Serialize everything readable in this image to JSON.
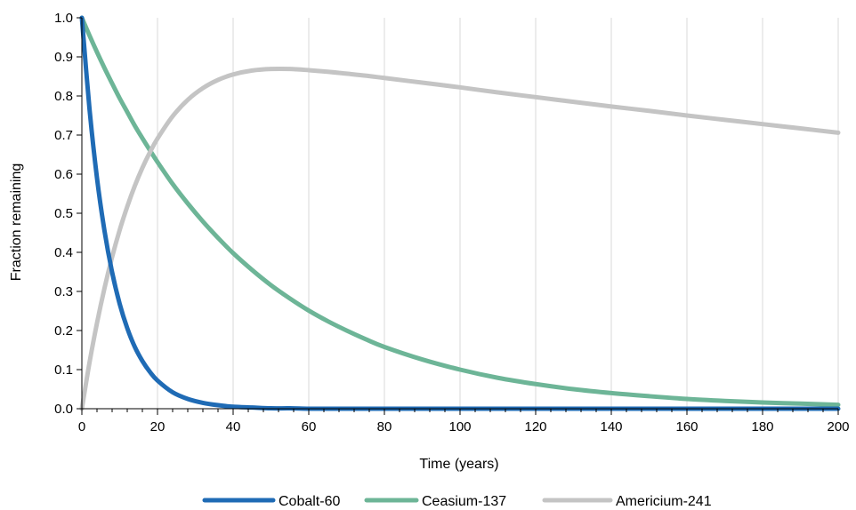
{
  "chart_data": {
    "type": "line",
    "title": "",
    "xlabel": "Time (years)",
    "ylabel": "Fraction remaining",
    "xlim": [
      0,
      200
    ],
    "ylim": [
      0,
      1.0
    ],
    "x_ticks": [
      0,
      20,
      40,
      60,
      80,
      100,
      120,
      140,
      160,
      180,
      200
    ],
    "y_ticks": [
      0.0,
      0.1,
      0.2,
      0.3,
      0.4,
      0.5,
      0.6,
      0.7,
      0.8,
      0.9,
      1.0
    ],
    "x_tick_labels": [
      "0",
      "20",
      "40",
      "60",
      "80",
      "100",
      "120",
      "140",
      "160",
      "180",
      "200"
    ],
    "y_tick_labels": [
      "0.0",
      "0.1",
      "0.2",
      "0.3",
      "0.4",
      "0.5",
      "0.6",
      "0.7",
      "0.8",
      "0.9",
      "1.0"
    ],
    "grid": "vertical",
    "legend_position": "bottom",
    "x": [
      0,
      2,
      4,
      6,
      8,
      10,
      12,
      14,
      16,
      18,
      20,
      24,
      28,
      32,
      36,
      40,
      45,
      50,
      55,
      60,
      65,
      70,
      75,
      80,
      90,
      100,
      110,
      120,
      130,
      140,
      150,
      160,
      170,
      180,
      190,
      200
    ],
    "series": [
      {
        "name": "Cobalt-60",
        "color": "#1f6bb5",
        "values": [
          1.0,
          0.769,
          0.59,
          0.454,
          0.349,
          0.268,
          0.206,
          0.158,
          0.122,
          0.094,
          0.072,
          0.042,
          0.025,
          0.015,
          0.009,
          0.005,
          0.003,
          0.001,
          0.001,
          0.0,
          0.0,
          0.0,
          0.0,
          0.0,
          0.0,
          0.0,
          0.0,
          0.0,
          0.0,
          0.0,
          0.0,
          0.0,
          0.0,
          0.0,
          0.0,
          0.0
        ]
      },
      {
        "name": "Ceasium-137",
        "color": "#6db597",
        "values": [
          1.0,
          0.955,
          0.912,
          0.871,
          0.832,
          0.794,
          0.759,
          0.724,
          0.692,
          0.661,
          0.631,
          0.575,
          0.525,
          0.479,
          0.437,
          0.398,
          0.355,
          0.316,
          0.282,
          0.251,
          0.224,
          0.2,
          0.178,
          0.158,
          0.126,
          0.1,
          0.079,
          0.063,
          0.05,
          0.04,
          0.032,
          0.025,
          0.02,
          0.016,
          0.013,
          0.01
        ]
      },
      {
        "name": "Americium-241",
        "color": "#c4c4c4",
        "values": [
          0.0,
          0.117,
          0.219,
          0.309,
          0.388,
          0.457,
          0.517,
          0.57,
          0.616,
          0.656,
          0.691,
          0.748,
          0.79,
          0.82,
          0.841,
          0.855,
          0.865,
          0.869,
          0.869,
          0.866,
          0.862,
          0.857,
          0.852,
          0.846,
          0.834,
          0.822,
          0.809,
          0.797,
          0.785,
          0.773,
          0.762,
          0.75,
          0.739,
          0.728,
          0.717,
          0.706
        ]
      }
    ]
  }
}
